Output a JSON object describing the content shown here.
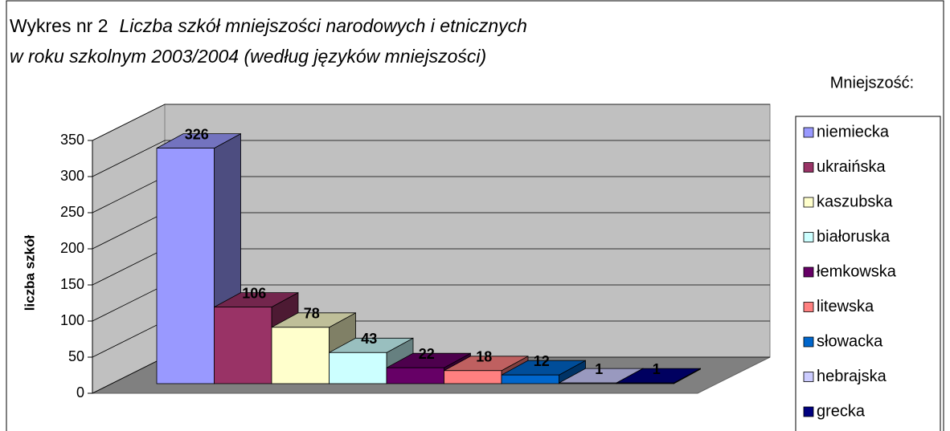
{
  "chart_data": {
    "type": "bar3d",
    "title": "Wykres nr 2",
    "subtitle": [
      "Liczba szkół mniejszości narodowych i etnicznych",
      "w roku szkolnym 2003/2004 (według języków mniejszości)"
    ],
    "y_label": "liczba szkół",
    "legend_title": "Mniejszość:",
    "ylim": [
      0,
      350
    ],
    "yticks": [
      0,
      50,
      100,
      150,
      200,
      250,
      300,
      350
    ],
    "grid": true,
    "series": [
      {
        "name": "niemiecka",
        "color": "#9999ff",
        "values": [
          326
        ]
      },
      {
        "name": "ukraińska",
        "color": "#993366",
        "values": [
          106
        ]
      },
      {
        "name": "kaszubska",
        "color": "#ffffcc",
        "values": [
          78
        ]
      },
      {
        "name": "białoruska",
        "color": "#ccffff",
        "values": [
          43
        ]
      },
      {
        "name": "łemkowska",
        "color": "#660066",
        "values": [
          22
        ]
      },
      {
        "name": "litewska",
        "color": "#ff8080",
        "values": [
          18
        ]
      },
      {
        "name": "słowacka",
        "color": "#0066cc",
        "values": [
          12
        ]
      },
      {
        "name": "hebrajska",
        "color": "#ccccff",
        "values": [
          1
        ]
      },
      {
        "name": "grecka",
        "color": "#000080",
        "values": [
          1
        ]
      }
    ]
  }
}
